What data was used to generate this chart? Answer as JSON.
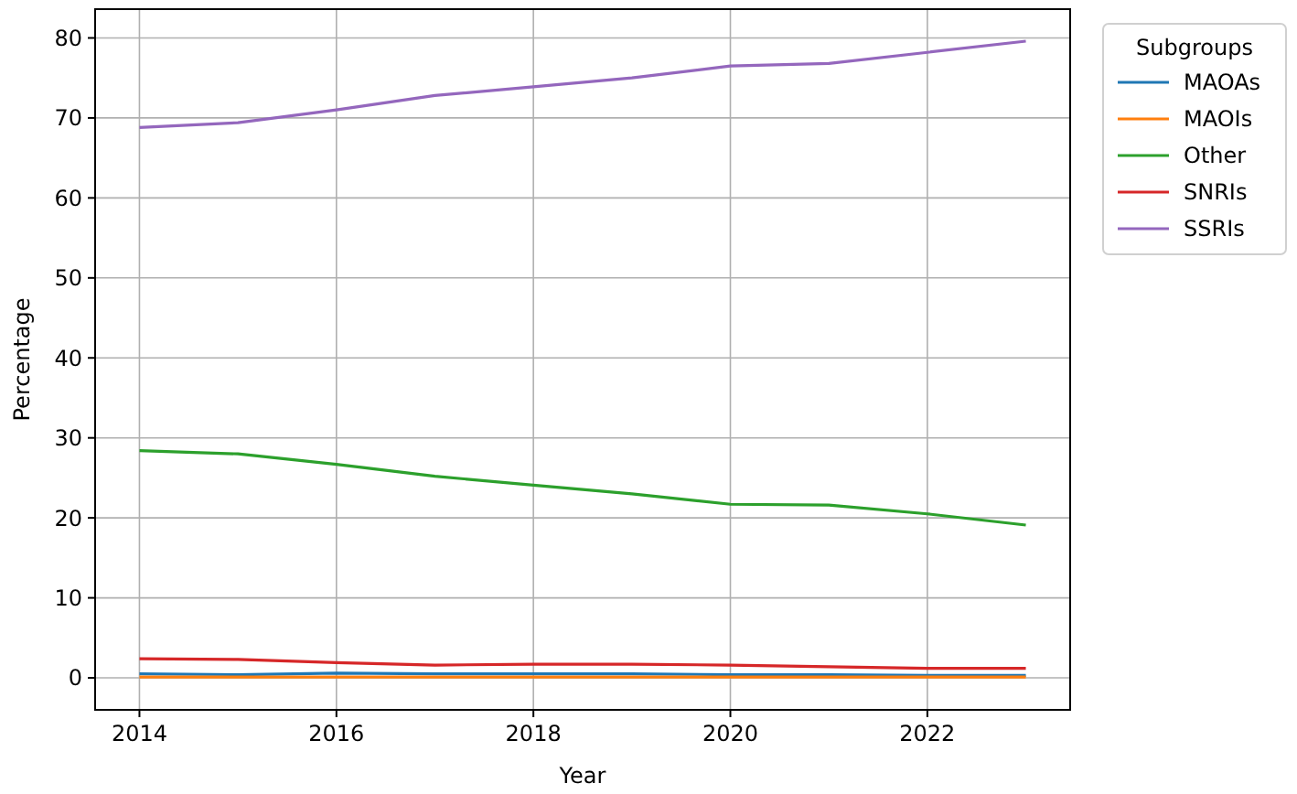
{
  "chart_data": {
    "type": "line",
    "xlabel": "Year",
    "ylabel": "Percentage",
    "legend_title": "Subgroups",
    "legend": "right",
    "grid": true,
    "x": [
      2014,
      2015,
      2016,
      2017,
      2018,
      2019,
      2020,
      2021,
      2022,
      2023
    ],
    "xlim": [
      2013.55,
      2023.45
    ],
    "xticks": [
      2014,
      2016,
      2018,
      2020,
      2022
    ],
    "ylim": [
      -4,
      83.6
    ],
    "yticks": [
      0,
      10,
      20,
      30,
      40,
      50,
      60,
      70,
      80
    ],
    "series": [
      {
        "name": "MAOAs",
        "color": "#1f77b4",
        "values": [
          0.5,
          0.4,
          0.6,
          0.5,
          0.5,
          0.5,
          0.4,
          0.4,
          0.3,
          0.3
        ]
      },
      {
        "name": "MAOIs",
        "color": "#ff7f0e",
        "values": [
          0.1,
          0.1,
          0.1,
          0.1,
          0.1,
          0.1,
          0.1,
          0.1,
          0.1,
          0.1
        ]
      },
      {
        "name": "Other",
        "color": "#2ca02c",
        "values": [
          28.4,
          28.0,
          26.7,
          25.2,
          24.1,
          23.0,
          21.7,
          21.6,
          20.5,
          19.1
        ]
      },
      {
        "name": "SNRIs",
        "color": "#d62728",
        "values": [
          2.4,
          2.3,
          1.9,
          1.6,
          1.7,
          1.7,
          1.6,
          1.4,
          1.2,
          1.2
        ]
      },
      {
        "name": "SSRIs",
        "color": "#9467bd",
        "values": [
          68.8,
          69.4,
          71.0,
          72.8,
          73.9,
          75.0,
          76.5,
          76.8,
          78.2,
          79.6
        ]
      }
    ]
  }
}
